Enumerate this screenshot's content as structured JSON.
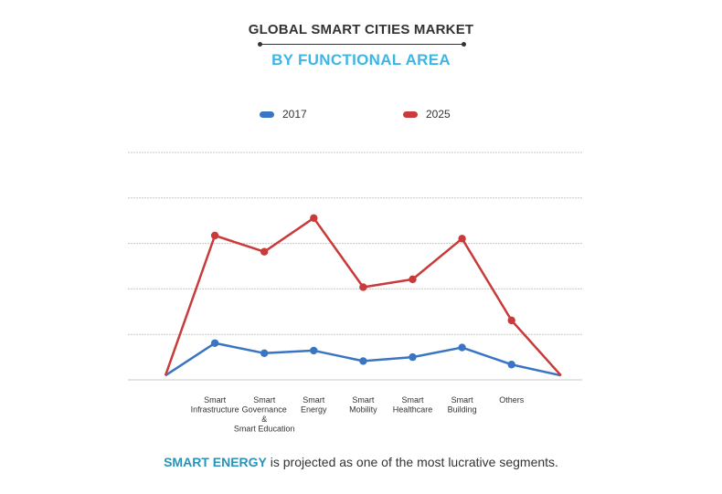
{
  "header": {
    "title": "GLOBAL SMART CITIES MARKET",
    "subtitle": "BY FUNCTIONAL AREA"
  },
  "footer": {
    "highlight": "SMART ENERGY",
    "text": " is projected as one of the most lucrative segments."
  },
  "colors": {
    "series_2017": "#3a75c4",
    "series_2025": "#c93b3b",
    "grid": "#c8c8c8",
    "subtitle": "#3cb6e6",
    "highlight": "#2a92b8"
  },
  "chart_data": {
    "type": "line",
    "categories": [
      "",
      "Smart\nInfrastructure",
      "Smart\nGovernance\n&\nSmart Education",
      "Smart\nEnergy",
      "Smart\nMobility",
      "Smart\nHealthcare",
      "Smart\nBuilding",
      "Others",
      ""
    ],
    "series": [
      {
        "name": "2017",
        "values": [
          1,
          8.4,
          6.1,
          6.7,
          4.3,
          5.2,
          7.4,
          3.5,
          1
        ]
      },
      {
        "name": "2025",
        "values": [
          1,
          33,
          29.3,
          37,
          21.2,
          23,
          32.3,
          13.6,
          1
        ]
      }
    ],
    "ylim": [
      0,
      52
    ],
    "grid": true,
    "y_ticks_labeled": false,
    "legend": "top-center"
  }
}
